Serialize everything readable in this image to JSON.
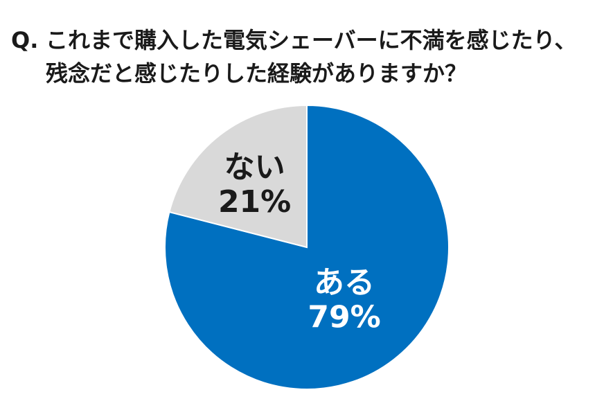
{
  "question": {
    "prefix": "Q.",
    "line1": "これまで購入した電気シェーバーに不満を感じたり、",
    "line2": "残念だと感じたりした経験がありますか？"
  },
  "chart_data": {
    "type": "pie",
    "title": "",
    "slices": [
      {
        "label": "ある",
        "value": 79,
        "value_label": "79%",
        "color": "#0070C0",
        "text_color": "#ffffff"
      },
      {
        "label": "ない",
        "value": 21,
        "value_label": "21%",
        "color": "#D9D9D9",
        "text_color": "#1a1a1a"
      }
    ],
    "legend": "none"
  }
}
